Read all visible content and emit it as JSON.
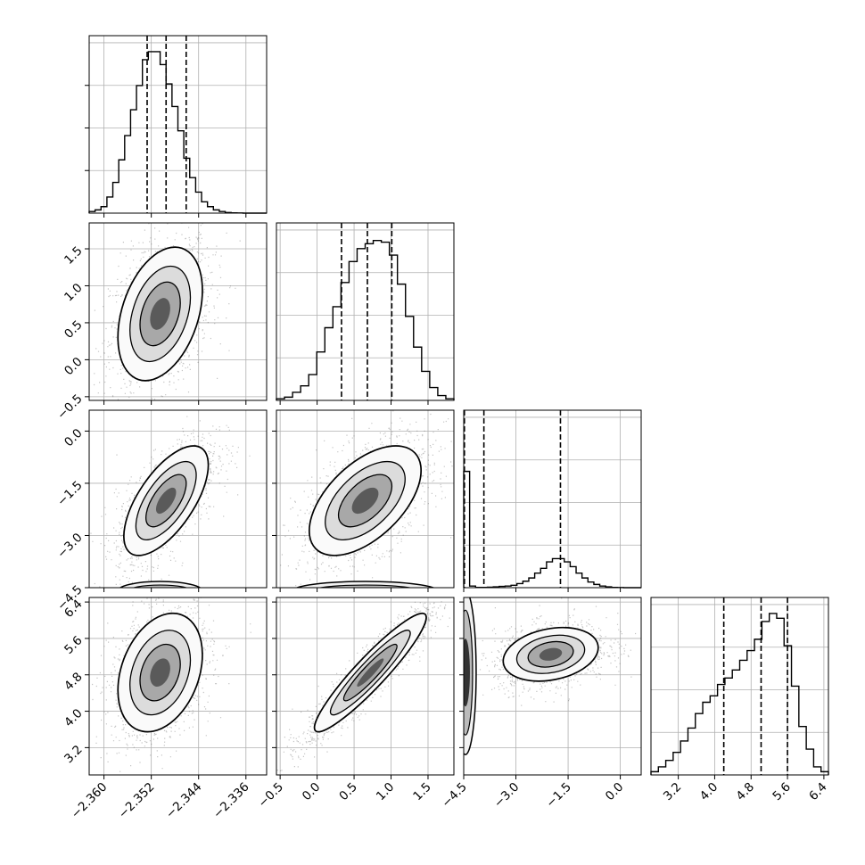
{
  "chart_data": {
    "type": "corner",
    "parameters": [
      {
        "range": [
          -2.3625,
          -2.3325
        ],
        "ticks": [
          "-2.360",
          "-2.352",
          "-2.344",
          "-2.336"
        ],
        "tick_values": [
          -2.36,
          -2.352,
          -2.344,
          -2.336
        ],
        "quantiles": [
          -2.3527,
          -2.3495,
          -2.3461
        ]
      },
      {
        "range": [
          -0.55,
          1.85
        ],
        "ticks": [
          "-0.5",
          "0.0",
          "0.5",
          "1.0",
          "1.5"
        ],
        "tick_values": [
          -0.5,
          0.0,
          0.5,
          1.0,
          1.5
        ],
        "quantiles": [
          0.33,
          0.68,
          1.01
        ]
      },
      {
        "range": [
          -4.5,
          0.6
        ],
        "ticks": [
          "-4.5",
          "-3.0",
          "-1.5",
          "0.0"
        ],
        "tick_values": [
          -4.5,
          -3.0,
          -1.5,
          0.0
        ],
        "quantiles": [
          -4.48,
          -3.92,
          -1.72
        ]
      },
      {
        "range": [
          2.6,
          6.5
        ],
        "ticks": [
          "3.2",
          "4.0",
          "4.8",
          "5.6",
          "6.4"
        ],
        "tick_values": [
          3.2,
          4.0,
          4.8,
          5.6,
          6.4
        ],
        "quantiles": [
          4.2,
          5.02,
          5.6
        ]
      }
    ],
    "histograms": [
      [
        0.01,
        0.02,
        0.04,
        0.1,
        0.19,
        0.33,
        0.48,
        0.64,
        0.79,
        0.95,
        1.0,
        1.0,
        0.92,
        0.8,
        0.66,
        0.51,
        0.34,
        0.22,
        0.13,
        0.07,
        0.04,
        0.02,
        0.01,
        0.004,
        0.002,
        0.001,
        0,
        0,
        0,
        0
      ],
      [
        0.01,
        0.02,
        0.05,
        0.09,
        0.16,
        0.3,
        0.45,
        0.58,
        0.73,
        0.86,
        0.94,
        0.97,
        0.99,
        0.98,
        0.9,
        0.72,
        0.52,
        0.33,
        0.18,
        0.08,
        0.03,
        0.01
      ],
      [
        0.72,
        0.01,
        0.002,
        0.002,
        0.003,
        0.005,
        0.008,
        0.01,
        0.015,
        0.025,
        0.04,
        0.06,
        0.09,
        0.12,
        0.16,
        0.18,
        0.18,
        0.16,
        0.13,
        0.09,
        0.06,
        0.035,
        0.02,
        0.01,
        0.005,
        0.002,
        0.001,
        0,
        0,
        0
      ],
      [
        0.02,
        0.05,
        0.09,
        0.14,
        0.21,
        0.29,
        0.38,
        0.45,
        0.49,
        0.56,
        0.6,
        0.65,
        0.71,
        0.77,
        0.84,
        0.95,
        1.0,
        0.97,
        0.8,
        0.55,
        0.3,
        0.16,
        0.05,
        0.02
      ]
    ]
  }
}
